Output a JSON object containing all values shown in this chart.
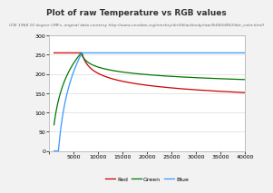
{
  "title": "Plot of raw Temperature vs RGB values",
  "subtitle": "(CIE 1964 10 degree CMFs, original data courtesy http://www.vendian.org/mnchry/dir3/blackbody/raw3b060d963/bbr_color.html)",
  "xlim": [
    0,
    40000
  ],
  "ylim": [
    0,
    300
  ],
  "xticks": [
    0,
    5000,
    10000,
    15000,
    20000,
    25000,
    30000,
    35000,
    40000
  ],
  "yticks": [
    0,
    50,
    100,
    150,
    200,
    250,
    300
  ],
  "red_color": "#cc0000",
  "green_color": "#007700",
  "blue_color": "#3399ff",
  "bg_color": "#f2f2f2",
  "plot_bg_color": "#ffffff",
  "grid_color": "#e0e0e0",
  "title_fontsize": 6.5,
  "subtitle_fontsize": 3.2,
  "tick_fontsize": 4.5,
  "legend_fontsize": 4.5
}
